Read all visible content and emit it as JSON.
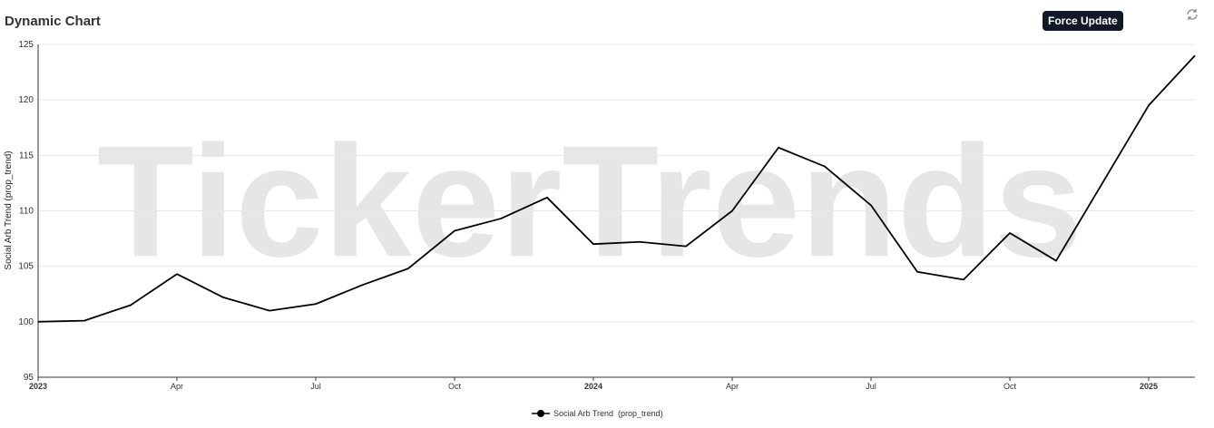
{
  "title_note": null,
  "button": "Force Update",
  "chart_data": {
    "type": "line",
    "title": "Dynamic Chart",
    "watermark": "TickerTrends",
    "y_label": "Social Arb Trend  (prop_trend)",
    "x": [
      "2023-01",
      "2023-02",
      "2023-03",
      "2023-04",
      "2023-05",
      "2023-06",
      "2023-07",
      "2023-08",
      "2023-09",
      "2023-10",
      "2023-11",
      "2023-12",
      "2024-01",
      "2024-02",
      "2024-03",
      "2024-04",
      "2024-05",
      "2024-06",
      "2024-07",
      "2024-08",
      "2024-09",
      "2024-10",
      "2024-11",
      "2024-12",
      "2025-01",
      "2025-02"
    ],
    "series": [
      {
        "name": "Social Arb Trend  (prop_trend)",
        "color": "#000000",
        "values": [
          100,
          100.1,
          101.5,
          104.3,
          102.2,
          101.0,
          101.6,
          103.3,
          104.8,
          108.2,
          109.3,
          111.2,
          107.0,
          107.2,
          106.8,
          110.0,
          115.7,
          114.0,
          110.5,
          104.5,
          103.8,
          108.0,
          105.5,
          112.5,
          119.5,
          124.0
        ]
      }
    ],
    "xlim": [
      "2023-01",
      "2025-02"
    ],
    "xticks": [
      {
        "value": "2023-01",
        "label": "2023"
      },
      {
        "value": "2023-04",
        "label": "Apr"
      },
      {
        "value": "2023-07",
        "label": "Jul"
      },
      {
        "value": "2023-10",
        "label": "Oct"
      },
      {
        "value": "2024-01",
        "label": "2024"
      },
      {
        "value": "2024-04",
        "label": "Apr"
      },
      {
        "value": "2024-07",
        "label": "Jul"
      },
      {
        "value": "2024-10",
        "label": "Oct"
      },
      {
        "value": "2025-01",
        "label": "2025"
      }
    ],
    "ylim": [
      95,
      125
    ],
    "yticks": [
      95,
      100,
      105,
      110,
      115,
      120,
      125
    ],
    "grid": true,
    "legend": "bottom"
  }
}
